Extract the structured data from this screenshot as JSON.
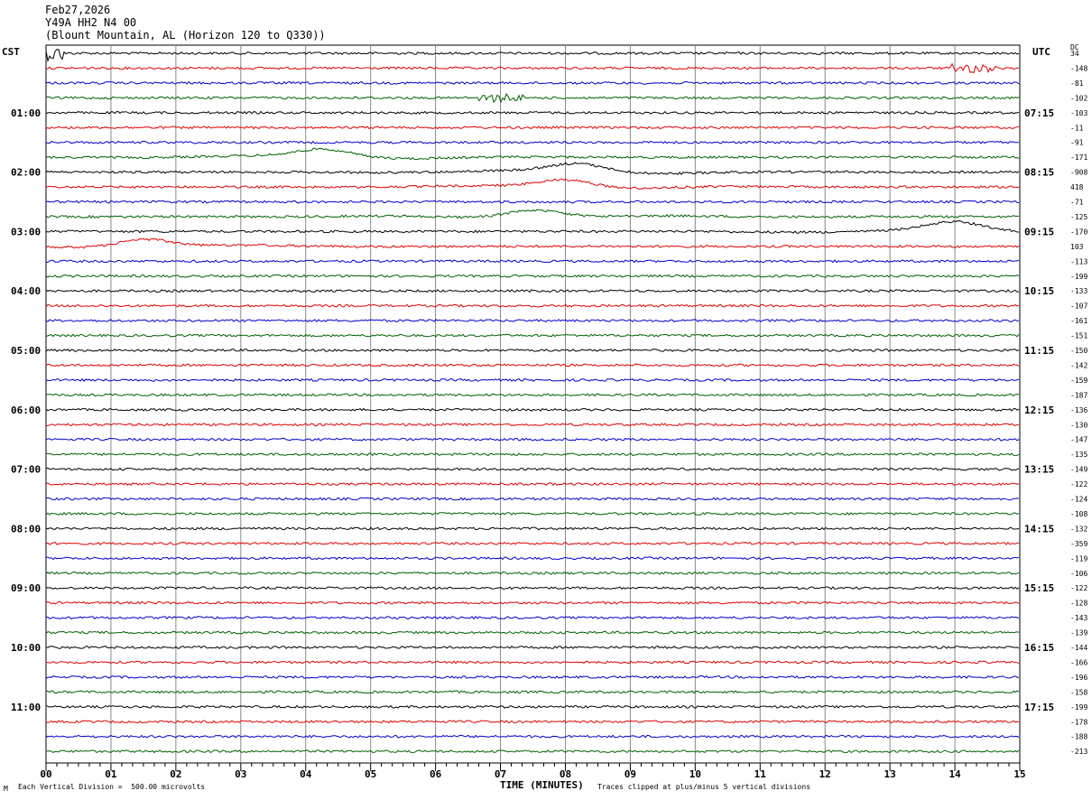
{
  "header": {
    "date": "Feb27,2026",
    "station": "Y49A HH2 N4 00",
    "location": "(Blount Mountain, AL (Horizon 120 to Q330))"
  },
  "left_tz": "CST",
  "right_tz": "UTC",
  "dc_label": "DC",
  "footer": {
    "scale": "Each Vertical Division =  500.00 microvolts",
    "clip": "Traces clipped at plus/minus 5 vertical divisions",
    "mark": "M"
  },
  "chart_data": {
    "type": "line",
    "title": "Y49A HH2 N4 00",
    "xlabel": "TIME (MINUTES)",
    "x_ticks": [
      "00",
      "01",
      "02",
      "03",
      "04",
      "05",
      "06",
      "07",
      "08",
      "09",
      "10",
      "11",
      "12",
      "13",
      "14",
      "15"
    ],
    "xlim": [
      0,
      15
    ],
    "trace_colors": [
      "#000000",
      "#e00000",
      "#0000d0",
      "#006000"
    ],
    "left_hour_labels": [
      "01:00",
      "02:00",
      "03:00",
      "04:00",
      "05:00",
      "06:00",
      "07:00",
      "08:00",
      "09:00",
      "10:00",
      "11:00"
    ],
    "right_hour_labels": [
      "07:15",
      "08:15",
      "09:15",
      "10:15",
      "11:15",
      "12:15",
      "13:15",
      "14:15",
      "15:15",
      "16:15",
      "17:15"
    ],
    "dc_offsets": [
      "34",
      "-148",
      "-81",
      "-102",
      "-103",
      "-11",
      "-91",
      "-171",
      "-908",
      "418",
      "-71",
      "-125",
      "-170",
      "103",
      "-113",
      "-199",
      "-133",
      "-107",
      "-161",
      "-151",
      "-150",
      "-142",
      "-159",
      "-187",
      "-136",
      "-130",
      "-147",
      "-135",
      "-149",
      "-122",
      "-124",
      "-108",
      "-132",
      "-359",
      "-119",
      "-106",
      "-122",
      "-128",
      "-143",
      "-139",
      "-144",
      "-166",
      "-196",
      "-158",
      "-199",
      "-178",
      "-188",
      "-213"
    ],
    "events": [
      {
        "trace": 0,
        "minute": 0.05,
        "type": "spike"
      },
      {
        "trace": 1,
        "minute": 14.3,
        "type": "burst"
      },
      {
        "trace": 3,
        "minute": 7.0,
        "type": "burst"
      },
      {
        "trace": 7,
        "minute": 4.3,
        "type": "wave"
      },
      {
        "trace": 8,
        "minute": 8.2,
        "type": "wave"
      },
      {
        "trace": 9,
        "minute": 8.0,
        "type": "wave"
      },
      {
        "trace": 11,
        "minute": 7.5,
        "type": "wave"
      },
      {
        "trace": 12,
        "minute": 14.0,
        "type": "wave"
      },
      {
        "trace": 13,
        "minute": 1.5,
        "type": "wave"
      }
    ],
    "grid": true
  }
}
